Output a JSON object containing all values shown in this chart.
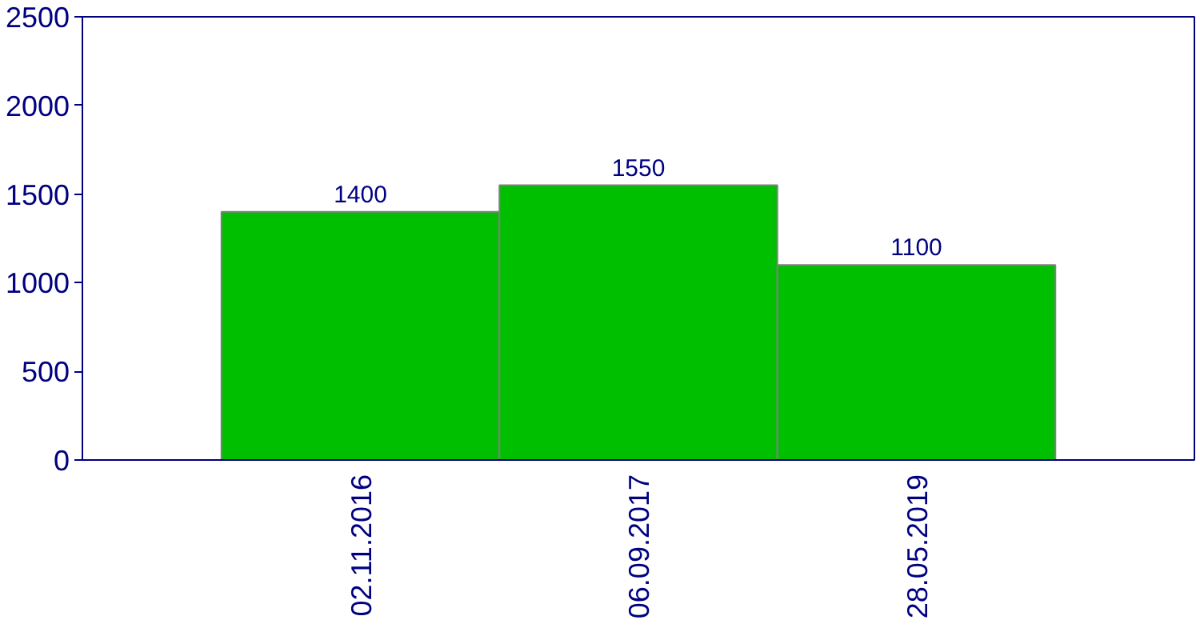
{
  "chart_data": {
    "type": "bar",
    "categories": [
      "02.11.2016",
      "06.09.2017",
      "28.05.2019"
    ],
    "values": [
      1400,
      1550,
      1100
    ],
    "color": "#00bf00",
    "ylim": [
      0,
      2500
    ],
    "yticks": [
      0,
      500,
      1000,
      1500,
      2000,
      2500
    ],
    "data_labels": true,
    "grid": false
  }
}
